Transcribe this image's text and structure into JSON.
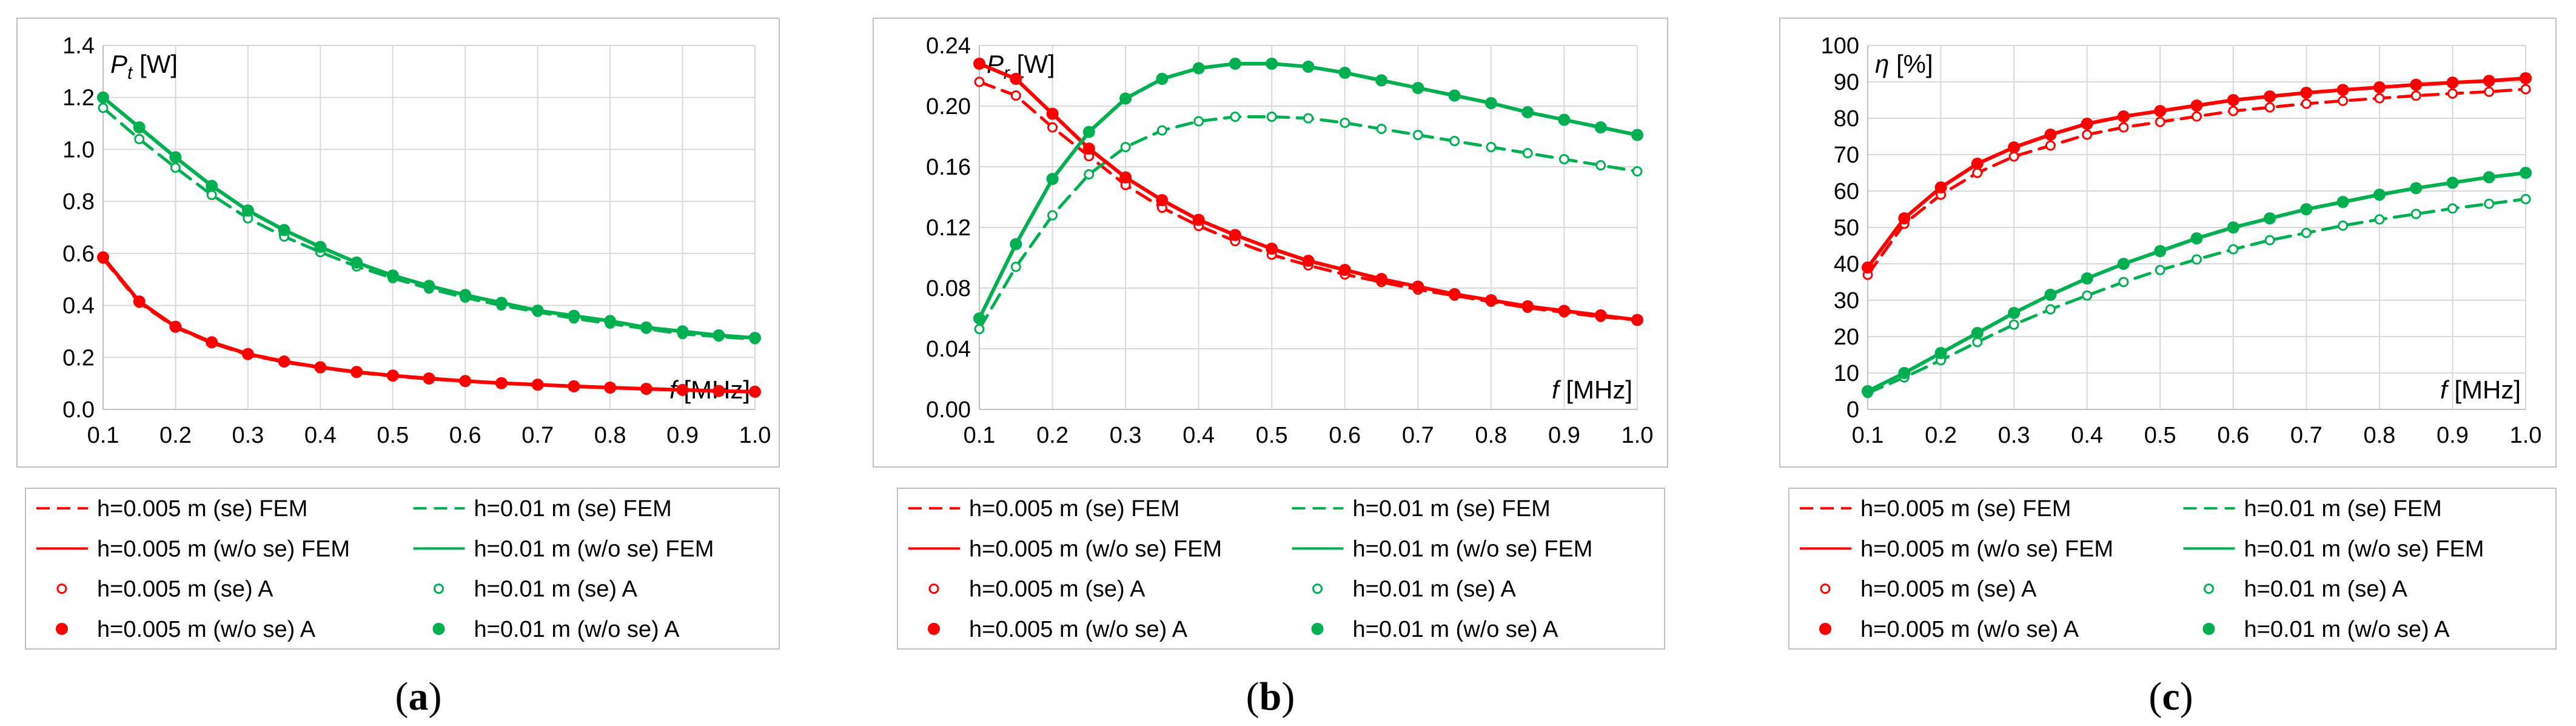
{
  "legend": {
    "entries": [
      {
        "label": "h=0.005 m (se) FEM",
        "color": "#ff0000",
        "style": "dash"
      },
      {
        "label": "h=0.01 m (se) FEM",
        "color": "#00b050",
        "style": "dash"
      },
      {
        "label": "h=0.005 m (w/o se) FEM",
        "color": "#ff0000",
        "style": "solid"
      },
      {
        "label": "h=0.01 m (w/o se) FEM",
        "color": "#00b050",
        "style": "solid"
      },
      {
        "label": "h=0.005 m (se) A",
        "color": "#ff0000",
        "style": "hollow"
      },
      {
        "label": "h=0.01 m (se) A",
        "color": "#00b050",
        "style": "hollow"
      },
      {
        "label": "h=0.005 m (w/o se) A",
        "color": "#ff0000",
        "style": "filled"
      },
      {
        "label": "h=0.01 m (w/o se) A",
        "color": "#00b050",
        "style": "filled"
      }
    ]
  },
  "chart_data": [
    {
      "type": "line",
      "panel_label": "(a)",
      "panel_letter": "a",
      "ylabel_sym": "P",
      "ylabel_sub": "t",
      "ylabel_unit": " [W]",
      "xlabel_sym": "f",
      "xlabel_unit": " [MHz]",
      "xlim": [
        0.1,
        1.0
      ],
      "ylim": [
        0.0,
        1.4
      ],
      "xticks": [
        "0.1",
        "0.2",
        "0.3",
        "0.4",
        "0.5",
        "0.6",
        "0.7",
        "0.8",
        "0.9",
        "1.0"
      ],
      "yticks": [
        "0.0",
        "0.2",
        "0.4",
        "0.6",
        "0.8",
        "1.0",
        "1.2",
        "1.4"
      ],
      "grid": true,
      "x": [
        0.1,
        0.15,
        0.2,
        0.25,
        0.3,
        0.35,
        0.4,
        0.45,
        0.5,
        0.55,
        0.6,
        0.65,
        0.7,
        0.75,
        0.8,
        0.85,
        0.9,
        0.95,
        1.0
      ],
      "series": [
        {
          "name": "h=0.005 m (se)",
          "color": "#ff0000",
          "se": true,
          "values": [
            0.58,
            0.41,
            0.315,
            0.255,
            0.21,
            0.182,
            0.16,
            0.142,
            0.128,
            0.117,
            0.108,
            0.1,
            0.094,
            0.088,
            0.083,
            0.078,
            0.074,
            0.07,
            0.067
          ]
        },
        {
          "name": "h=0.01 m (se)",
          "color": "#00b050",
          "se": true,
          "values": [
            1.16,
            1.04,
            0.93,
            0.825,
            0.735,
            0.665,
            0.605,
            0.55,
            0.505,
            0.465,
            0.43,
            0.4,
            0.375,
            0.35,
            0.33,
            0.31,
            0.29,
            0.28,
            0.27
          ]
        },
        {
          "name": "h=0.005 m (w/o se)",
          "color": "#ff0000",
          "se": false,
          "values": [
            0.585,
            0.415,
            0.318,
            0.258,
            0.213,
            0.184,
            0.162,
            0.144,
            0.13,
            0.119,
            0.109,
            0.101,
            0.095,
            0.089,
            0.084,
            0.079,
            0.075,
            0.071,
            0.068
          ]
        },
        {
          "name": "h=0.01 m (w/o se)",
          "color": "#00b050",
          "se": false,
          "values": [
            1.2,
            1.085,
            0.97,
            0.86,
            0.765,
            0.69,
            0.625,
            0.565,
            0.515,
            0.475,
            0.44,
            0.41,
            0.38,
            0.36,
            0.34,
            0.315,
            0.3,
            0.285,
            0.275
          ]
        }
      ]
    },
    {
      "type": "line",
      "panel_label": "(b)",
      "panel_letter": "b",
      "ylabel_sym": "P",
      "ylabel_sub": "r",
      "ylabel_unit": " [W]",
      "xlabel_sym": "f",
      "xlabel_unit": " [MHz]",
      "xlim": [
        0.1,
        1.0
      ],
      "ylim": [
        0.0,
        0.24
      ],
      "xticks": [
        "0.1",
        "0.2",
        "0.3",
        "0.4",
        "0.5",
        "0.6",
        "0.7",
        "0.8",
        "0.9",
        "1.0"
      ],
      "yticks": [
        "0.00",
        "0.04",
        "0.08",
        "0.12",
        "0.16",
        "0.20",
        "0.24"
      ],
      "grid": true,
      "x": [
        0.1,
        0.15,
        0.2,
        0.25,
        0.3,
        0.35,
        0.4,
        0.45,
        0.5,
        0.55,
        0.6,
        0.65,
        0.7,
        0.75,
        0.8,
        0.85,
        0.9,
        0.95,
        1.0
      ],
      "series": [
        {
          "name": "h=0.005 m (se)",
          "color": "#ff0000",
          "se": true,
          "values": [
            0.216,
            0.207,
            0.186,
            0.167,
            0.148,
            0.133,
            0.121,
            0.111,
            0.102,
            0.095,
            0.089,
            0.084,
            0.079,
            0.075,
            0.071,
            0.067,
            0.064,
            0.061,
            0.059
          ]
        },
        {
          "name": "h=0.01 m (se)",
          "color": "#00b050",
          "se": true,
          "values": [
            0.053,
            0.094,
            0.128,
            0.155,
            0.173,
            0.184,
            0.19,
            0.193,
            0.193,
            0.192,
            0.189,
            0.185,
            0.181,
            0.177,
            0.173,
            0.169,
            0.165,
            0.161,
            0.157
          ]
        },
        {
          "name": "h=0.005 m (w/o se)",
          "color": "#ff0000",
          "se": false,
          "values": [
            0.228,
            0.218,
            0.195,
            0.172,
            0.153,
            0.138,
            0.125,
            0.115,
            0.106,
            0.098,
            0.092,
            0.086,
            0.081,
            0.076,
            0.072,
            0.068,
            0.065,
            0.062,
            0.059
          ]
        },
        {
          "name": "h=0.01 m (w/o se)",
          "color": "#00b050",
          "se": false,
          "values": [
            0.06,
            0.109,
            0.152,
            0.183,
            0.205,
            0.218,
            0.225,
            0.228,
            0.228,
            0.226,
            0.222,
            0.217,
            0.212,
            0.207,
            0.202,
            0.196,
            0.191,
            0.186,
            0.181
          ]
        }
      ]
    },
    {
      "type": "line",
      "panel_label": "(c)",
      "panel_letter": "c",
      "ylabel_sym": "η",
      "ylabel_sub": "",
      "ylabel_unit": " [%]",
      "xlabel_sym": "f",
      "xlabel_unit": " [MHz]",
      "xlim": [
        0.1,
        1.0
      ],
      "ylim": [
        0,
        100
      ],
      "xticks": [
        "0.1",
        "0.2",
        "0.3",
        "0.4",
        "0.5",
        "0.6",
        "0.7",
        "0.8",
        "0.9",
        "1.0"
      ],
      "yticks": [
        "0",
        "10",
        "20",
        "30",
        "40",
        "50",
        "60",
        "70",
        "80",
        "90",
        "100"
      ],
      "grid": true,
      "x": [
        0.1,
        0.15,
        0.2,
        0.25,
        0.3,
        0.35,
        0.4,
        0.45,
        0.5,
        0.55,
        0.6,
        0.65,
        0.7,
        0.75,
        0.8,
        0.85,
        0.9,
        0.95,
        1.0
      ],
      "series": [
        {
          "name": "h=0.005 m (se)",
          "color": "#ff0000",
          "se": true,
          "values": [
            37,
            51,
            59,
            65,
            69.5,
            72.5,
            75.5,
            77.5,
            79,
            80.5,
            82,
            83,
            84,
            84.8,
            85.5,
            86.2,
            86.8,
            87.3,
            88
          ]
        },
        {
          "name": "h=0.01 m (se)",
          "color": "#00b050",
          "se": true,
          "values": [
            4.5,
            8.8,
            13.5,
            18.5,
            23.3,
            27.5,
            31.3,
            35,
            38.3,
            41.2,
            44,
            46.5,
            48.5,
            50.5,
            52.2,
            53.7,
            55.2,
            56.5,
            57.8
          ]
        },
        {
          "name": "h=0.005 m (w/o se)",
          "color": "#ff0000",
          "se": false,
          "values": [
            39,
            52.5,
            61,
            67.5,
            72,
            75.5,
            78.5,
            80.5,
            82,
            83.5,
            85,
            86,
            87,
            87.8,
            88.5,
            89.2,
            89.8,
            90.3,
            91
          ]
        },
        {
          "name": "h=0.01 m (w/o se)",
          "color": "#00b050",
          "se": false,
          "values": [
            5,
            10,
            15.5,
            21,
            26.5,
            31.5,
            36,
            40,
            43.5,
            47,
            50,
            52.5,
            55,
            57,
            59,
            60.8,
            62.3,
            63.8,
            65
          ]
        }
      ]
    }
  ]
}
